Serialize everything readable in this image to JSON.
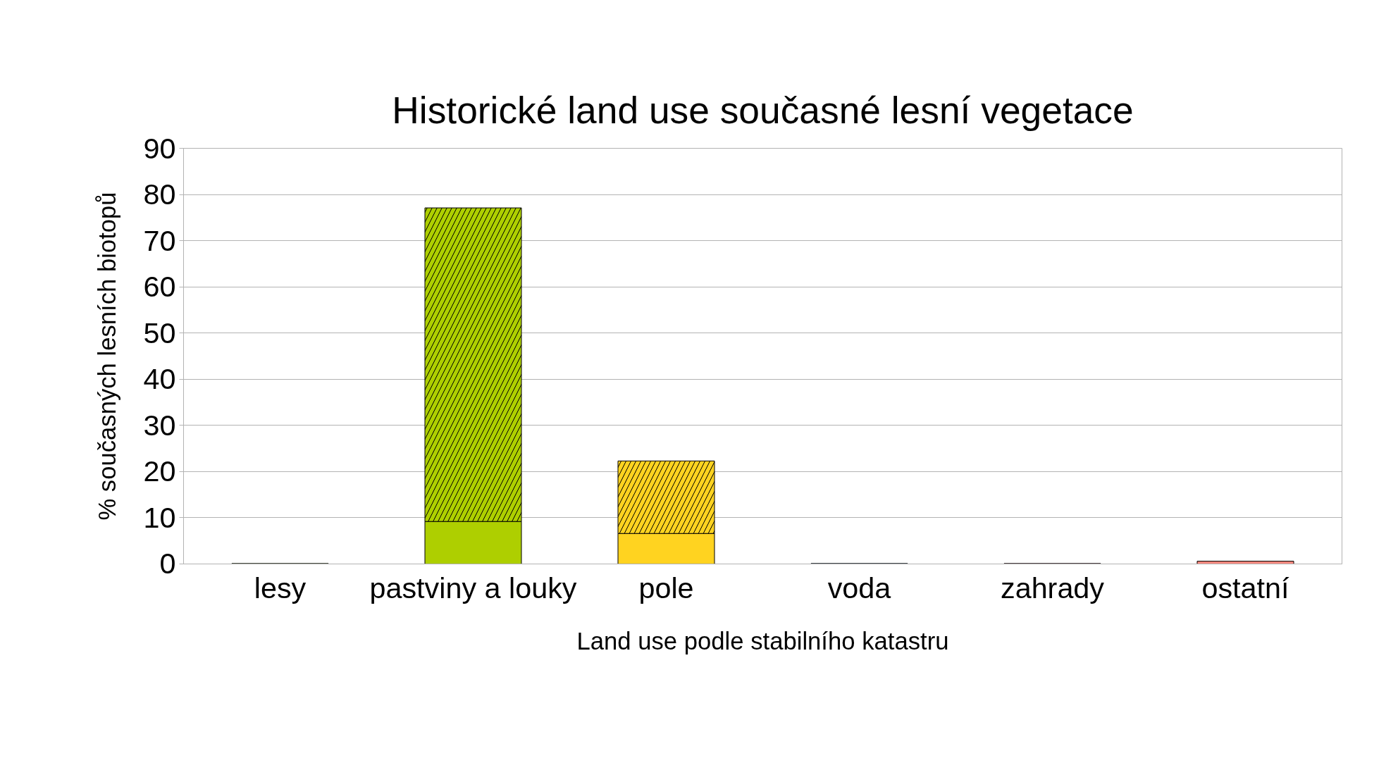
{
  "chart_data": {
    "type": "bar",
    "title": "Historické land use současné lesní vegetace",
    "xlabel": "Land use podle stabilního katastru",
    "ylabel": "% současných lesních biotopů",
    "categories": [
      "lesy",
      "pastviny a louky",
      "pole",
      "voda",
      "zahrady",
      "ostatní"
    ],
    "stacked": true,
    "series": [
      {
        "colors": [
          "#579d1c",
          "#aecf00",
          "#ffd320",
          "#004586",
          "#7e0021",
          "#ff8a80"
        ],
        "values": [
          0.1,
          9.2,
          6.6,
          0.1,
          0.1,
          0.6
        ]
      },
      {
        "colors": [
          "#579d1c",
          "#aecf00",
          "#ffd320",
          "#004586",
          "#7e0021",
          "#ff8a80"
        ],
        "values": [
          0,
          67.9,
          15.7,
          0,
          0,
          0
        ]
      }
    ],
    "ylim": [
      0,
      90
    ],
    "yticks": [
      0,
      10,
      20,
      30,
      40,
      50,
      60,
      70,
      80,
      90
    ],
    "grid": "y"
  }
}
